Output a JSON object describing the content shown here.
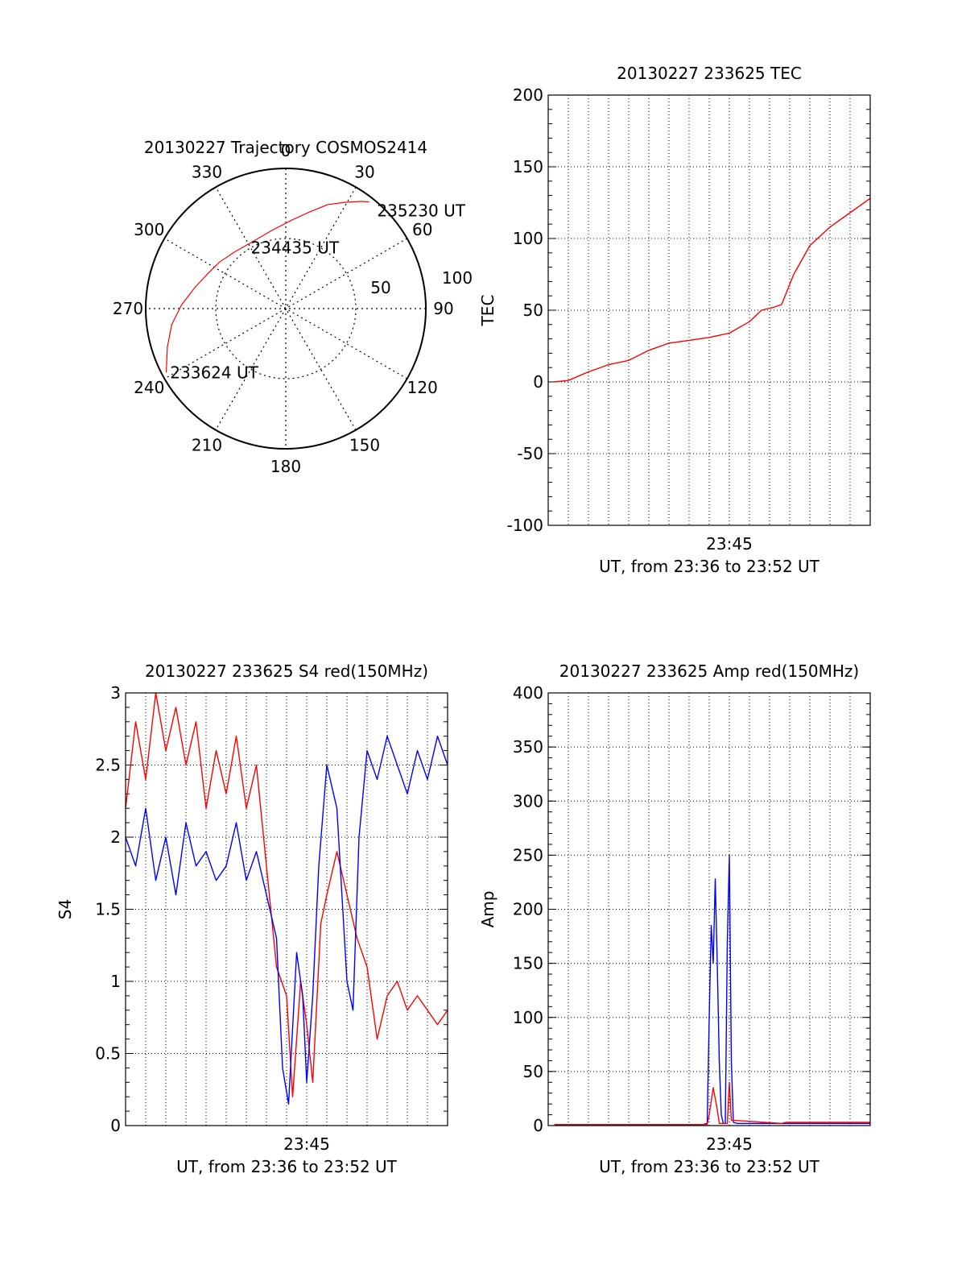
{
  "chart_data": [
    {
      "type": "polar",
      "title": "20130227 Trajectory COSMOS2414",
      "azimuth_labels": [
        "0",
        "30",
        "60",
        "90",
        "120",
        "150",
        "180",
        "210",
        "240",
        "270",
        "300",
        "330"
      ],
      "radial_labels": [
        "50",
        "100"
      ],
      "trajectory": [
        {
          "az": 242,
          "el": 3
        },
        {
          "az": 252,
          "el": 10
        },
        {
          "az": 262,
          "el": 16
        },
        {
          "az": 272,
          "el": 23
        },
        {
          "az": 283,
          "el": 30
        },
        {
          "az": 294,
          "el": 35
        },
        {
          "az": 305,
          "el": 38
        },
        {
          "az": 318,
          "el": 41
        },
        {
          "az": 334,
          "el": 42
        },
        {
          "az": 350,
          "el": 39
        },
        {
          "az": 4,
          "el": 33
        },
        {
          "az": 14,
          "el": 26
        },
        {
          "az": 22,
          "el": 18
        },
        {
          "az": 29,
          "el": 12
        },
        {
          "az": 35,
          "el": 6
        },
        {
          "az": 38,
          "el": 3
        }
      ],
      "annotations": [
        {
          "text": "233624 UT",
          "az": 241,
          "el": 5
        },
        {
          "text": "234435 UT",
          "az": 330,
          "el": 45
        },
        {
          "text": "235230 UT",
          "az": 43,
          "el": 4
        }
      ],
      "series_color": "#ff0000"
    },
    {
      "type": "line",
      "title": "20130227 233625 TEC",
      "ylabel": "TEC",
      "xlabel": "UT, from 23:36 to 23:52 UT",
      "ylim": [
        -100,
        200
      ],
      "yticks": [
        "200",
        "150",
        "100",
        "50",
        "0",
        "-50",
        "-100"
      ],
      "xlim": [
        0,
        16
      ],
      "xticks": [
        {
          "value": 9,
          "label": "23:45"
        }
      ],
      "grid": true,
      "series": [
        {
          "color": "#ff0000",
          "points": [
            [
              0.3,
              0
            ],
            [
              1,
              1
            ],
            [
              2,
              7
            ],
            [
              3,
              12
            ],
            [
              4,
              15
            ],
            [
              5,
              22
            ],
            [
              6,
              27
            ],
            [
              7,
              29
            ],
            [
              8,
              31
            ],
            [
              9,
              34
            ],
            [
              10,
              42
            ],
            [
              10.6,
              50
            ],
            [
              11.2,
              52
            ],
            [
              11.6,
              54
            ],
            [
              12.2,
              75
            ],
            [
              13,
              95
            ],
            [
              14,
              108
            ],
            [
              15,
              118
            ],
            [
              16,
              128
            ]
          ]
        }
      ]
    },
    {
      "type": "line",
      "title": "20130227 233625 S4 red(150MHz)",
      "ylabel": "S4",
      "xlabel": "UT, from 23:36 to 23:52 UT",
      "ylim": [
        0,
        3
      ],
      "yticks": [
        "3",
        "2.5",
        "2",
        "1.5",
        "1",
        "0.5",
        "0"
      ],
      "xlim": [
        0,
        16
      ],
      "xticks": [
        {
          "value": 9,
          "label": "23:45"
        }
      ],
      "grid": true,
      "series": [
        {
          "color": "#ff0000",
          "points": [
            [
              0,
              2.2
            ],
            [
              0.5,
              2.8
            ],
            [
              1,
              2.4
            ],
            [
              1.5,
              3
            ],
            [
              2,
              2.6
            ],
            [
              2.5,
              2.9
            ],
            [
              3,
              2.5
            ],
            [
              3.5,
              2.8
            ],
            [
              4,
              2.2
            ],
            [
              4.5,
              2.6
            ],
            [
              5,
              2.3
            ],
            [
              5.5,
              2.7
            ],
            [
              6,
              2.2
            ],
            [
              6.5,
              2.5
            ],
            [
              7,
              1.8
            ],
            [
              7.5,
              1.1
            ],
            [
              8,
              0.9
            ],
            [
              8.3,
              0.2
            ],
            [
              8.7,
              1.0
            ],
            [
              9,
              0.7
            ],
            [
              9.3,
              0.3
            ],
            [
              9.7,
              1.4
            ],
            [
              10,
              1.6
            ],
            [
              10.5,
              1.9
            ],
            [
              11,
              1.6
            ],
            [
              11.5,
              1.3
            ],
            [
              12,
              1.1
            ],
            [
              12.5,
              0.6
            ],
            [
              13,
              0.9
            ],
            [
              13.5,
              1.0
            ],
            [
              14,
              0.8
            ],
            [
              14.5,
              0.9
            ],
            [
              15,
              0.8
            ],
            [
              15.5,
              0.7
            ],
            [
              16,
              0.8
            ]
          ]
        },
        {
          "color": "#0000ff",
          "points": [
            [
              0,
              2.0
            ],
            [
              0.5,
              1.8
            ],
            [
              1,
              2.2
            ],
            [
              1.5,
              1.7
            ],
            [
              2,
              2.0
            ],
            [
              2.5,
              1.6
            ],
            [
              3,
              2.1
            ],
            [
              3.5,
              1.8
            ],
            [
              4,
              1.9
            ],
            [
              4.5,
              1.7
            ],
            [
              5,
              1.8
            ],
            [
              5.5,
              2.1
            ],
            [
              6,
              1.7
            ],
            [
              6.5,
              1.9
            ],
            [
              7,
              1.6
            ],
            [
              7.5,
              1.3
            ],
            [
              7.8,
              0.4
            ],
            [
              8.1,
              0.15
            ],
            [
              8.5,
              1.2
            ],
            [
              8.8,
              0.9
            ],
            [
              9,
              0.3
            ],
            [
              9.3,
              0.9
            ],
            [
              9.6,
              1.8
            ],
            [
              10,
              2.5
            ],
            [
              10.5,
              2.2
            ],
            [
              11,
              1.0
            ],
            [
              11.3,
              0.8
            ],
            [
              11.6,
              2.0
            ],
            [
              12,
              2.6
            ],
            [
              12.5,
              2.4
            ],
            [
              13,
              2.7
            ],
            [
              13.5,
              2.5
            ],
            [
              14,
              2.3
            ],
            [
              14.5,
              2.6
            ],
            [
              15,
              2.4
            ],
            [
              15.5,
              2.7
            ],
            [
              16,
              2.5
            ]
          ]
        }
      ]
    },
    {
      "type": "line",
      "title": "20130227 233625 Amp red(150MHz)",
      "ylabel": "Amp",
      "xlabel": "UT, from 23:36 to 23:52 UT",
      "ylim": [
        0,
        400
      ],
      "yticks": [
        "400",
        "350",
        "300",
        "250",
        "200",
        "150",
        "100",
        "50",
        "0"
      ],
      "xlim": [
        0,
        16
      ],
      "xticks": [
        {
          "value": 9,
          "label": "23:45"
        }
      ],
      "grid": true,
      "series": [
        {
          "color": "#0000ff",
          "points": [
            [
              0.3,
              1
            ],
            [
              7.7,
              1
            ],
            [
              7.9,
              2
            ],
            [
              8.0,
              100
            ],
            [
              8.1,
              185
            ],
            [
              8.2,
              150
            ],
            [
              8.3,
              228
            ],
            [
              8.4,
              150
            ],
            [
              8.5,
              60
            ],
            [
              8.6,
              10
            ],
            [
              8.7,
              2
            ],
            [
              8.8,
              2
            ],
            [
              8.9,
              170
            ],
            [
              9.0,
              250
            ],
            [
              9.1,
              60
            ],
            [
              9.2,
              3
            ],
            [
              9.4,
              2
            ],
            [
              11,
              2
            ],
            [
              16,
              2
            ]
          ]
        },
        {
          "color": "#ff0000",
          "points": [
            [
              0.3,
              1
            ],
            [
              7.9,
              1
            ],
            [
              8.0,
              10
            ],
            [
              8.2,
              35
            ],
            [
              8.4,
              15
            ],
            [
              8.5,
              2
            ],
            [
              8.9,
              2
            ],
            [
              9.0,
              40
            ],
            [
              9.1,
              5
            ],
            [
              11.6,
              2
            ],
            [
              11.8,
              3
            ],
            [
              16,
              3
            ]
          ]
        }
      ]
    }
  ]
}
